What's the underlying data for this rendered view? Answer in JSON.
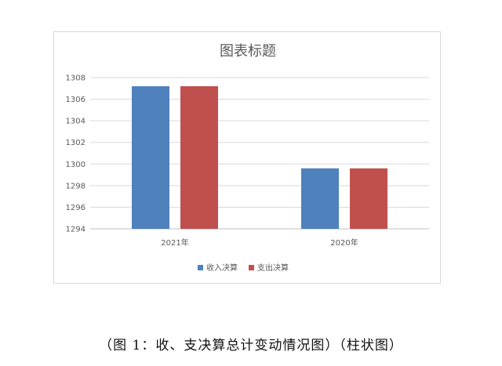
{
  "chart_data": {
    "type": "bar",
    "title": "图表标题",
    "categories": [
      "2021年",
      "2020年"
    ],
    "series": [
      {
        "name": "收入决算",
        "values": [
          1307.2,
          1299.6
        ],
        "color": "#4f81bd"
      },
      {
        "name": "支出决算",
        "values": [
          1307.2,
          1299.6
        ],
        "color": "#c0504d"
      }
    ],
    "ylim": [
      1294,
      1308
    ],
    "yticks": [
      1294,
      1296,
      1298,
      1300,
      1302,
      1304,
      1306,
      1308
    ],
    "grid": true,
    "legend_position": "bottom"
  },
  "caption": "（图 1：收、支决算总计变动情况图）（柱状图）"
}
